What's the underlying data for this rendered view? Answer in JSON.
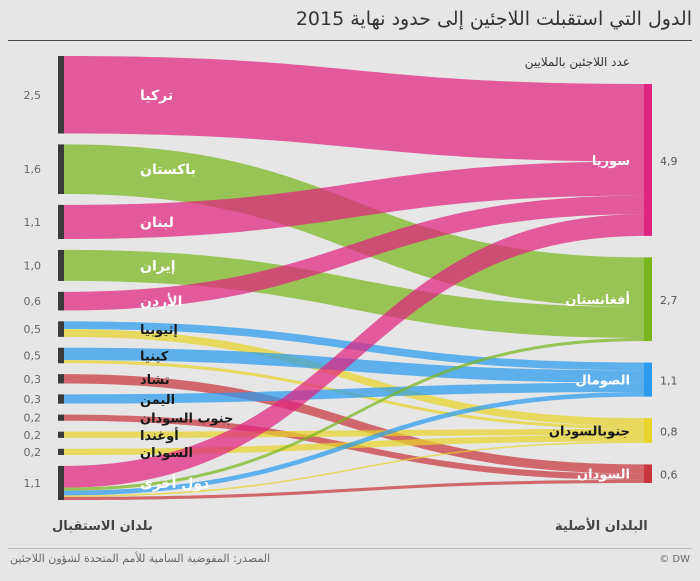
{
  "title": "الدول التي استقبلت اللاجئين إلى حدود نهاية 2015",
  "subtitle": "عدد اللاجئين بالملايين",
  "left_axis_title": "بلدان الاستقبال",
  "right_axis_title": "البلدان الأصلية",
  "source": "المصدر: المفوضية السامية للأمم المتحدة لشؤون اللاجئين",
  "credit": "© DW",
  "chart_data": {
    "type": "sankey",
    "unit": "ملايين",
    "origins": [
      {
        "id": "syria",
        "name": "سوريا",
        "value": "4,9",
        "color": "#e0237f"
      },
      {
        "id": "afghanistan",
        "name": "أفغانستان",
        "value": "2,7",
        "color": "#7ab51d"
      },
      {
        "id": "somalia",
        "name": "الصومال",
        "value": "1,1",
        "color": "#2a9bf0"
      },
      {
        "id": "southsudan",
        "name": "جنوبالسودان",
        "value": "0,8",
        "color": "#e8d42a"
      },
      {
        "id": "sudan",
        "name": "السودان",
        "value": "0,6",
        "color": "#c8363e"
      }
    ],
    "hosts": [
      {
        "name": "تركيا",
        "value": "2,5",
        "flows": [
          {
            "to": "syria",
            "v": 2.5
          }
        ]
      },
      {
        "name": "باكستان",
        "value": "1,6",
        "flows": [
          {
            "to": "afghanistan",
            "v": 1.6
          }
        ]
      },
      {
        "name": "لبنان",
        "value": "1,1",
        "flows": [
          {
            "to": "syria",
            "v": 1.1
          }
        ]
      },
      {
        "name": "إيران",
        "value": "1,0",
        "flows": [
          {
            "to": "afghanistan",
            "v": 1.0
          }
        ]
      },
      {
        "name": "الأردن",
        "value": "0,6",
        "flows": [
          {
            "to": "syria",
            "v": 0.6
          }
        ]
      },
      {
        "name": "إثيوبيا",
        "value": "0,5",
        "flows": [
          {
            "to": "somalia",
            "v": 0.25
          },
          {
            "to": "southsudan",
            "v": 0.25
          }
        ]
      },
      {
        "name": "كينيا",
        "value": "0,5",
        "flows": [
          {
            "to": "somalia",
            "v": 0.4
          },
          {
            "to": "southsudan",
            "v": 0.1
          }
        ]
      },
      {
        "name": "تشاد",
        "value": "0,3",
        "flows": [
          {
            "to": "sudan",
            "v": 0.3
          }
        ]
      },
      {
        "name": "اليمن",
        "value": "0,3",
        "flows": [
          {
            "to": "somalia",
            "v": 0.3
          }
        ]
      },
      {
        "name": "جنوب السودان",
        "value": "0,2",
        "flows": [
          {
            "to": "sudan",
            "v": 0.2
          }
        ]
      },
      {
        "name": "أوغندا",
        "value": "0,2",
        "flows": [
          {
            "to": "southsudan",
            "v": 0.2
          }
        ]
      },
      {
        "name": "السودان",
        "value": "0,2",
        "flows": [
          {
            "to": "southsudan",
            "v": 0.2
          }
        ]
      },
      {
        "name": "دول أخرى",
        "value": "1,1",
        "flows": [
          {
            "to": "syria",
            "v": 0.7
          },
          {
            "to": "afghanistan",
            "v": 0.1
          },
          {
            "to": "somalia",
            "v": 0.15
          },
          {
            "to": "southsudan",
            "v": 0.05
          },
          {
            "to": "sudan",
            "v": 0.1
          }
        ]
      }
    ]
  }
}
